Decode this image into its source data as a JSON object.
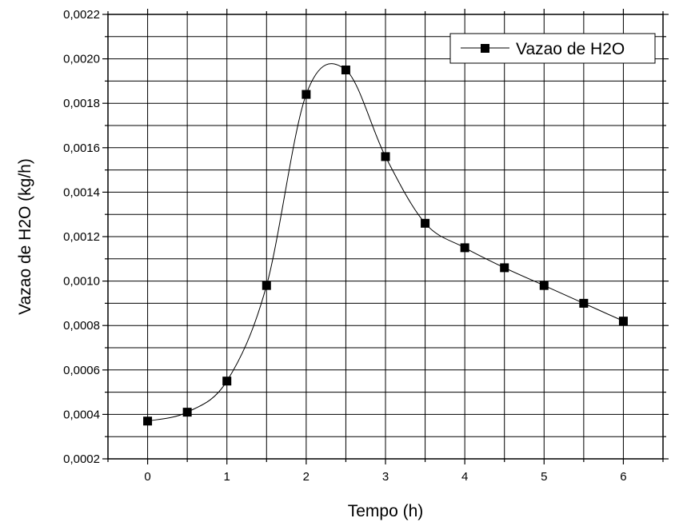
{
  "chart_data": {
    "type": "line",
    "xlabel": "Tempo (h)",
    "ylabel": "Vazao de H2O (kg/h)",
    "xlim": [
      -0.5,
      6.5
    ],
    "ylim": [
      0.0002,
      0.0022
    ],
    "x_ticks": [
      0,
      1,
      2,
      3,
      4,
      5,
      6
    ],
    "x_tick_labels": [
      "0",
      "1",
      "2",
      "3",
      "4",
      "5",
      "6"
    ],
    "y_ticks": [
      0.0002,
      0.0004,
      0.0006,
      0.0008,
      0.001,
      0.0012,
      0.0014,
      0.0016,
      0.0018,
      0.002,
      0.0022
    ],
    "y_tick_labels": [
      "0,0002",
      "0,0004",
      "0,0006",
      "0,0008",
      "0,0010",
      "0,0012",
      "0,0014",
      "0,0016",
      "0,0018",
      "0,0020",
      "0,0022"
    ],
    "grid": true,
    "legend_position": "top-right",
    "marker": "square",
    "line_style": "smooth",
    "series": [
      {
        "name": "Vazao de H2O",
        "color": "#000000",
        "x": [
          0,
          0.5,
          1,
          1.5,
          2,
          2.5,
          3,
          3.5,
          4,
          4.5,
          5,
          5.5,
          6
        ],
        "y": [
          0.00037,
          0.00041,
          0.00055,
          0.00098,
          0.00184,
          0.00195,
          0.00156,
          0.00126,
          0.00115,
          0.00106,
          0.00098,
          0.0009,
          0.00082
        ]
      }
    ]
  }
}
